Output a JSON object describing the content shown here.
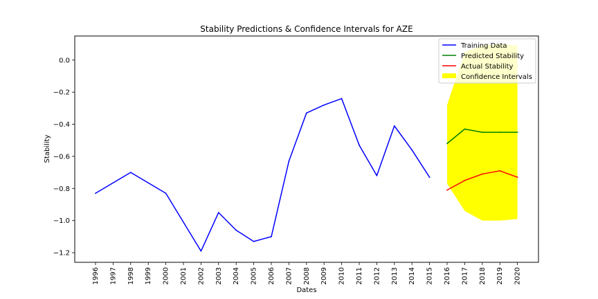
{
  "chart_data": {
    "type": "line",
    "title": "Stability Predictions & Confidence Intervals for AZE",
    "xlabel": "Dates",
    "ylabel": "Stability",
    "x": [
      "1996",
      "1997",
      "1998",
      "1999",
      "2000",
      "2001",
      "2002",
      "2003",
      "2004",
      "2005",
      "2006",
      "2007",
      "2008",
      "2009",
      "2010",
      "2011",
      "2012",
      "2013",
      "2014",
      "2015",
      "2016",
      "2017",
      "2018",
      "2019",
      "2020"
    ],
    "ylim": [
      -1.26,
      0.15
    ],
    "yticks": [
      0.0,
      -0.2,
      -0.4,
      -0.6,
      -0.8,
      -1.0,
      -1.2
    ],
    "ytick_labels": [
      "0.0",
      "−0.2",
      "−0.4",
      "−0.6",
      "−0.8",
      "−1.0",
      "−1.2"
    ],
    "grid": false,
    "legend_position": "top-right",
    "series": [
      {
        "name": "Training Data",
        "color": "#0000ff",
        "x": [
          "1996",
          "1998",
          "2000",
          "2002",
          "2003",
          "2004",
          "2005",
          "2006",
          "2007",
          "2008",
          "2009",
          "2010",
          "2011",
          "2012",
          "2013",
          "2014",
          "2015"
        ],
        "values": [
          -0.83,
          -0.7,
          -0.83,
          -1.19,
          -0.95,
          -1.06,
          -1.13,
          -1.1,
          -0.63,
          -0.33,
          -0.28,
          -0.24,
          -0.53,
          -0.72,
          -0.41,
          -0.56,
          -0.73
        ]
      },
      {
        "name": "Predicted Stability",
        "color": "#008000",
        "x": [
          "2016",
          "2017",
          "2018",
          "2019",
          "2020"
        ],
        "values": [
          -0.52,
          -0.43,
          -0.45,
          -0.45,
          -0.45
        ]
      },
      {
        "name": "Actual Stability",
        "color": "#ff0000",
        "x": [
          "2016",
          "2017",
          "2018",
          "2019",
          "2020"
        ],
        "values": [
          -0.81,
          -0.75,
          -0.71,
          -0.69,
          -0.73
        ]
      }
    ],
    "confidence_interval": {
      "name": "Confidence Intervals",
      "color": "#ffff00",
      "x": [
        "2016",
        "2017",
        "2018",
        "2019",
        "2020"
      ],
      "upper": [
        -0.28,
        0.05,
        0.09,
        0.1,
        0.09
      ],
      "lower": [
        -0.77,
        -0.94,
        -1.0,
        -1.0,
        -0.99
      ]
    }
  }
}
